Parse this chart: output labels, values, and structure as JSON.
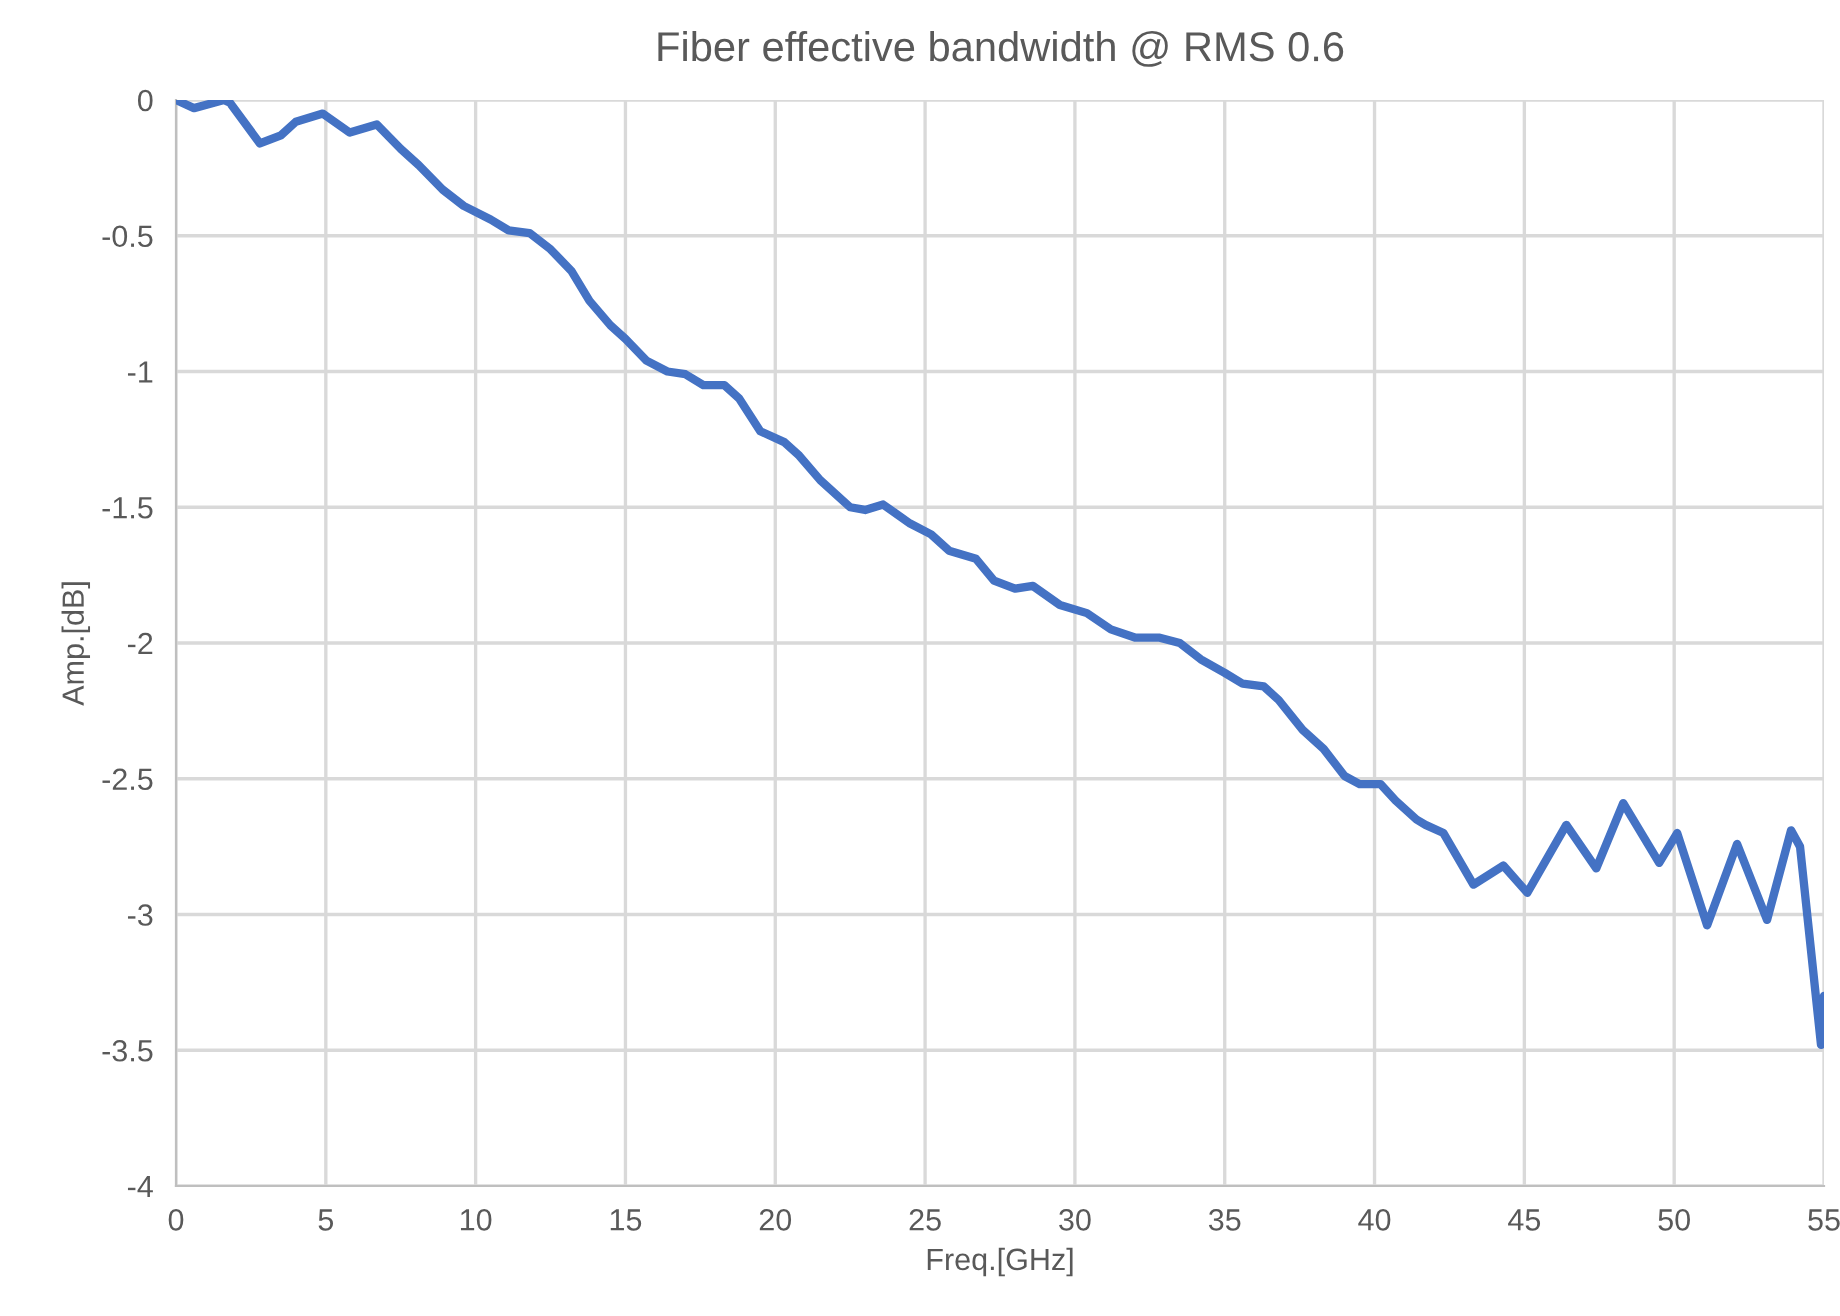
{
  "chart_data": {
    "type": "line",
    "title": "Fiber effective bandwidth @ RMS 0.6",
    "xlabel": "Freq.[GHz]",
    "ylabel": "Amp.[dB]",
    "xlim": [
      0,
      55
    ],
    "ylim": [
      -4,
      0
    ],
    "xticks": [
      0,
      5,
      10,
      15,
      20,
      25,
      30,
      35,
      40,
      45,
      50,
      55
    ],
    "yticks": [
      -4,
      -3.5,
      -3,
      -2.5,
      -2,
      -1.5,
      -1,
      -0.5,
      0
    ],
    "grid": true,
    "line_style": "solid",
    "marker": "none",
    "series": [
      {
        "color": "#4472c4",
        "x": [
          0,
          0.6,
          1.6,
          1.8,
          2.8,
          3.5,
          4.0,
          4.9,
          5.8,
          6.7,
          7.5,
          8.1,
          8.9,
          9.6,
          10.5,
          11.1,
          11.8,
          12.5,
          13.2,
          13.8,
          14.5,
          15.0,
          15.7,
          16.4,
          17.0,
          17.6,
          18.3,
          18.8,
          19.5,
          20.3,
          20.8,
          21.5,
          22.5,
          23.0,
          23.6,
          24.5,
          25.2,
          25.8,
          26.7,
          27.3,
          28.0,
          28.6,
          29.5,
          30.4,
          31.2,
          32.0,
          32.8,
          33.5,
          34.2,
          35.0,
          35.6,
          36.3,
          36.8,
          37.6,
          38.3,
          39.0,
          39.5,
          40.2,
          40.7,
          41.4,
          41.7,
          42.3,
          43.3,
          44.3,
          45.1,
          46.4,
          47.4,
          48.3,
          49.5,
          50.1,
          51.1,
          52.1,
          53.1,
          53.9,
          54.2,
          54.9,
          55
        ],
        "values": [
          0,
          -0.03,
          0.0,
          -0.01,
          -0.16,
          -0.13,
          -0.08,
          -0.05,
          -0.12,
          -0.09,
          -0.18,
          -0.24,
          -0.33,
          -0.39,
          -0.44,
          -0.48,
          -0.49,
          -0.55,
          -0.63,
          -0.74,
          -0.83,
          -0.88,
          -0.96,
          -1.0,
          -1.01,
          -1.05,
          -1.05,
          -1.1,
          -1.22,
          -1.26,
          -1.31,
          -1.4,
          -1.5,
          -1.51,
          -1.49,
          -1.56,
          -1.6,
          -1.66,
          -1.69,
          -1.77,
          -1.8,
          -1.79,
          -1.86,
          -1.89,
          -1.95,
          -1.98,
          -1.98,
          -2.0,
          -2.06,
          -2.11,
          -2.15,
          -2.16,
          -2.21,
          -2.32,
          -2.39,
          -2.49,
          -2.52,
          -2.52,
          -2.58,
          -2.65,
          -2.67,
          -2.7,
          -2.89,
          -2.82,
          -2.92,
          -2.67,
          -2.83,
          -2.59,
          -2.81,
          -2.7,
          -3.04,
          -2.74,
          -3.02,
          -2.69,
          -2.75,
          -3.48,
          -3.3
        ]
      }
    ]
  }
}
